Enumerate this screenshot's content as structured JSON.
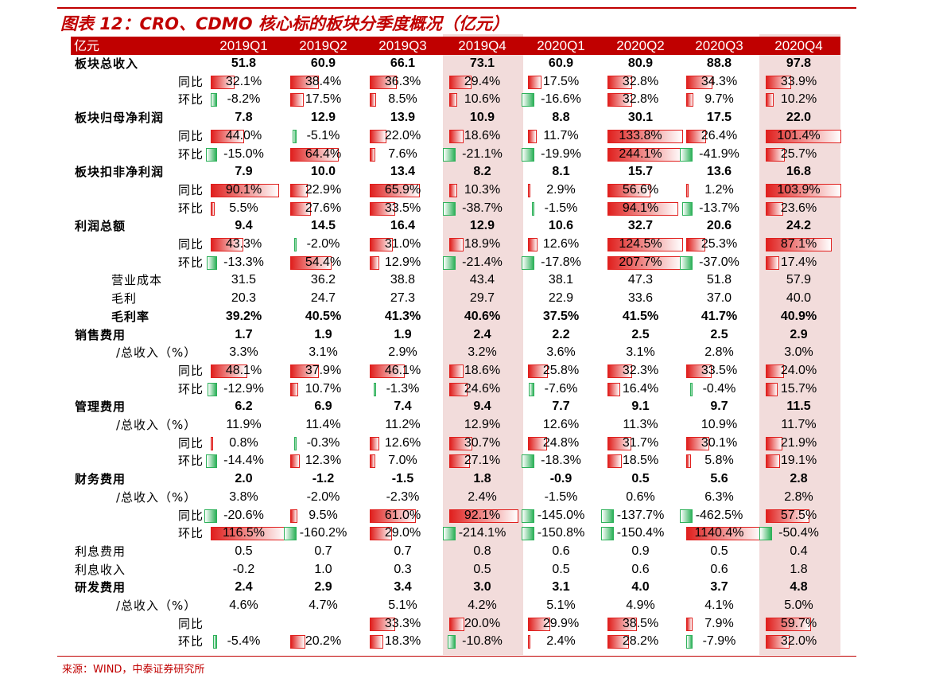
{
  "title": "图表 12：CRO、CDMO 核心标的板块分季度概况（亿元）",
  "source": "来源：WIND，中泰证券研究所",
  "colors": {
    "accent": "#c00000",
    "positive_bar": "#e0201e",
    "negative_bar": "#2eb15a",
    "highlight_column": "#f2dcdb"
  },
  "header": {
    "unit_label": "亿元",
    "columns": [
      "2019Q1",
      "2019Q2",
      "2019Q3",
      "2019Q4",
      "2020Q1",
      "2020Q2",
      "2020Q3",
      "2020Q4"
    ]
  },
  "rows": [
    {
      "label": "板块总收入",
      "level": 0,
      "bold": true,
      "bar": false,
      "values": [
        "51.8",
        "60.9",
        "66.1",
        "73.1",
        "60.9",
        "80.9",
        "88.8",
        "97.8"
      ]
    },
    {
      "label": "同比",
      "level": 2,
      "bold": false,
      "bar": true,
      "values": [
        "32.1%",
        "38.4%",
        "36.3%",
        "29.4%",
        "17.5%",
        "32.8%",
        "34.3%",
        "33.9%"
      ]
    },
    {
      "label": "环比",
      "level": 2,
      "bold": false,
      "bar": true,
      "values": [
        "-8.2%",
        "17.5%",
        "8.5%",
        "10.6%",
        "-16.6%",
        "32.8%",
        "9.7%",
        "10.2%"
      ]
    },
    {
      "label": "板块归母净利润",
      "level": 0,
      "bold": true,
      "bar": false,
      "values": [
        "7.8",
        "12.9",
        "13.9",
        "10.9",
        "8.8",
        "30.1",
        "17.5",
        "22.0"
      ]
    },
    {
      "label": "同比",
      "level": 2,
      "bold": false,
      "bar": true,
      "values": [
        "44.0%",
        "-5.1%",
        "22.0%",
        "18.6%",
        "11.7%",
        "133.8%",
        "26.4%",
        "101.4%"
      ]
    },
    {
      "label": "环比",
      "level": 2,
      "bold": false,
      "bar": true,
      "values": [
        "-15.0%",
        "64.4%",
        "7.6%",
        "-21.1%",
        "-19.9%",
        "244.1%",
        "-41.9%",
        "25.7%"
      ]
    },
    {
      "label": "板块扣非净利润",
      "level": 0,
      "bold": true,
      "bar": false,
      "values": [
        "7.9",
        "10.0",
        "13.4",
        "8.2",
        "8.1",
        "15.7",
        "13.6",
        "16.8"
      ]
    },
    {
      "label": "同比",
      "level": 2,
      "bold": false,
      "bar": true,
      "values": [
        "90.1%",
        "22.9%",
        "65.9%",
        "10.3%",
        "2.9%",
        "56.6%",
        "1.2%",
        "103.9%"
      ]
    },
    {
      "label": "环比",
      "level": 2,
      "bold": false,
      "bar": true,
      "values": [
        "5.5%",
        "27.6%",
        "33.5%",
        "-38.7%",
        "-1.5%",
        "94.1%",
        "-13.7%",
        "23.6%"
      ]
    },
    {
      "label": "利润总额",
      "level": 0,
      "bold": true,
      "bar": false,
      "values": [
        "9.4",
        "14.5",
        "16.4",
        "12.9",
        "10.6",
        "32.7",
        "20.6",
        "24.2"
      ]
    },
    {
      "label": "同比",
      "level": 2,
      "bold": false,
      "bar": true,
      "values": [
        "43.3%",
        "-2.0%",
        "31.0%",
        "18.9%",
        "12.6%",
        "124.5%",
        "25.3%",
        "87.1%"
      ]
    },
    {
      "label": "环比",
      "level": 2,
      "bold": false,
      "bar": true,
      "values": [
        "-13.3%",
        "54.4%",
        "12.9%",
        "-21.4%",
        "-17.8%",
        "207.7%",
        "-37.0%",
        "17.4%"
      ]
    },
    {
      "label": "营业成本",
      "level": 1,
      "bold": false,
      "bar": false,
      "values": [
        "31.5",
        "36.2",
        "38.8",
        "43.4",
        "38.1",
        "47.3",
        "51.8",
        "57.9"
      ]
    },
    {
      "label": "毛利",
      "level": 1,
      "bold": false,
      "bar": false,
      "values": [
        "20.3",
        "24.7",
        "27.3",
        "29.7",
        "22.9",
        "33.6",
        "37.0",
        "40.0"
      ]
    },
    {
      "label": "毛利率",
      "level": 1,
      "bold": true,
      "bar": false,
      "values": [
        "39.2%",
        "40.5%",
        "41.3%",
        "40.6%",
        "37.5%",
        "41.5%",
        "41.7%",
        "40.9%"
      ]
    },
    {
      "label": "销售费用",
      "level": 0,
      "bold": true,
      "bar": false,
      "values": [
        "1.7",
        "1.9",
        "1.9",
        "2.4",
        "2.2",
        "2.5",
        "2.5",
        "2.9"
      ]
    },
    {
      "label": "/总收入（%）",
      "level": 3,
      "bold": false,
      "bar": false,
      "values": [
        "3.3%",
        "3.1%",
        "2.9%",
        "3.2%",
        "3.6%",
        "3.1%",
        "2.8%",
        "3.0%"
      ]
    },
    {
      "label": "同比",
      "level": 2,
      "bold": false,
      "bar": true,
      "values": [
        "48.1%",
        "37.9%",
        "46.1%",
        "18.6%",
        "25.8%",
        "32.3%",
        "33.5%",
        "24.0%"
      ]
    },
    {
      "label": "环比",
      "level": 2,
      "bold": false,
      "bar": true,
      "values": [
        "-12.9%",
        "10.7%",
        "-1.3%",
        "24.6%",
        "-7.6%",
        "16.4%",
        "-0.4%",
        "15.7%"
      ]
    },
    {
      "label": "管理费用",
      "level": 0,
      "bold": true,
      "bar": false,
      "values": [
        "6.2",
        "6.9",
        "7.4",
        "9.4",
        "7.7",
        "9.1",
        "9.7",
        "11.5"
      ]
    },
    {
      "label": "/总收入（%）",
      "level": 3,
      "bold": false,
      "bar": false,
      "values": [
        "11.9%",
        "11.4%",
        "11.2%",
        "12.9%",
        "12.6%",
        "11.3%",
        "10.9%",
        "11.7%"
      ]
    },
    {
      "label": "同比",
      "level": 2,
      "bold": false,
      "bar": true,
      "values": [
        "0.8%",
        "-0.3%",
        "12.6%",
        "30.7%",
        "24.8%",
        "31.7%",
        "30.1%",
        "21.9%"
      ]
    },
    {
      "label": "环比",
      "level": 2,
      "bold": false,
      "bar": true,
      "values": [
        "-14.4%",
        "12.3%",
        "7.0%",
        "27.1%",
        "-18.3%",
        "18.5%",
        "5.8%",
        "19.1%"
      ]
    },
    {
      "label": "财务费用",
      "level": 0,
      "bold": true,
      "bar": false,
      "values": [
        "2.0",
        "-1.2",
        "-1.5",
        "1.8",
        "-0.9",
        "0.5",
        "5.6",
        "2.8"
      ]
    },
    {
      "label": "/总收入（%）",
      "level": 3,
      "bold": false,
      "bar": false,
      "values": [
        "3.8%",
        "-2.0%",
        "-2.3%",
        "2.4%",
        "-1.5%",
        "0.6%",
        "6.3%",
        "2.8%"
      ]
    },
    {
      "label": "同比",
      "level": 2,
      "bold": false,
      "bar": true,
      "values": [
        "-20.6%",
        "9.5%",
        "61.0%",
        "92.1%",
        "-145.0%",
        "-137.7%",
        "-462.5%",
        "57.5%"
      ]
    },
    {
      "label": "环比",
      "level": 2,
      "bold": false,
      "bar": true,
      "values": [
        "116.5%",
        "-160.2%",
        "29.0%",
        "-214.1%",
        "-150.8%",
        "-150.4%",
        "1140.4%",
        "-50.4%"
      ]
    },
    {
      "label": "利息费用",
      "level": 0,
      "bold": false,
      "bar": false,
      "values": [
        "0.5",
        "0.7",
        "0.7",
        "0.8",
        "0.6",
        "0.9",
        "0.5",
        "0.4"
      ]
    },
    {
      "label": "利息收入",
      "level": 0,
      "bold": false,
      "bar": false,
      "values": [
        "-0.2",
        "1.0",
        "0.3",
        "0.5",
        "0.5",
        "0.6",
        "0.6",
        "1.8"
      ]
    },
    {
      "label": "研发费用",
      "level": 0,
      "bold": true,
      "bar": false,
      "values": [
        "2.4",
        "2.9",
        "3.4",
        "3.0",
        "3.1",
        "4.0",
        "3.7",
        "4.8"
      ]
    },
    {
      "label": "/总收入（%）",
      "level": 3,
      "bold": false,
      "bar": false,
      "values": [
        "4.6%",
        "4.7%",
        "5.1%",
        "4.2%",
        "5.1%",
        "4.9%",
        "4.1%",
        "5.0%"
      ]
    },
    {
      "label": "同比",
      "level": 2,
      "bold": false,
      "bar": true,
      "values": [
        "",
        "",
        "33.3%",
        "20.0%",
        "29.9%",
        "38.5%",
        "7.9%",
        "59.7%"
      ]
    },
    {
      "label": "环比",
      "level": 2,
      "bold": false,
      "bar": true,
      "values": [
        "-5.4%",
        "20.2%",
        "18.3%",
        "-10.8%",
        "2.4%",
        "28.2%",
        "-7.9%",
        "32.0%"
      ]
    }
  ]
}
